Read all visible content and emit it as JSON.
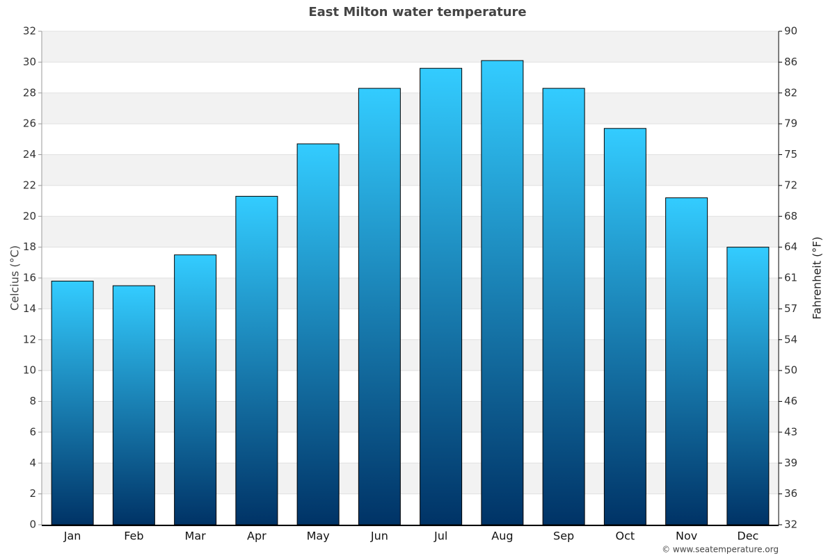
{
  "chart_data": {
    "type": "bar",
    "title": "East Milton water temperature",
    "categories": [
      "Jan",
      "Feb",
      "Mar",
      "Apr",
      "May",
      "Jun",
      "Jul",
      "Aug",
      "Sep",
      "Oct",
      "Nov",
      "Dec"
    ],
    "values": [
      15.8,
      15.5,
      17.5,
      21.3,
      24.7,
      28.3,
      29.6,
      30.1,
      28.3,
      25.7,
      21.2,
      18.0
    ],
    "color": [
      "#33ccff",
      "#003366"
    ],
    "ylabel": "Celcius (°C)",
    "y2label": "Fahrenheit (°F)",
    "ylim": [
      0,
      32
    ],
    "yticks": [
      0,
      2,
      4,
      6,
      8,
      10,
      12,
      14,
      16,
      18,
      20,
      22,
      24,
      26,
      28,
      30,
      32
    ],
    "y2lim": [
      32,
      89.6
    ],
    "y2ticks": [
      32,
      {
        "value": 35.6,
        "label": "36"
      },
      {
        "value": 39.2,
        "label": "39"
      },
      {
        "value": 42.8,
        "label": "43"
      },
      {
        "value": 46.4,
        "label": "46"
      },
      50,
      {
        "value": 53.6,
        "label": "54"
      },
      {
        "value": 57.2,
        "label": "57"
      },
      {
        "value": 60.8,
        "label": "61"
      },
      {
        "value": 64.4,
        "label": "64"
      },
      68,
      {
        "value": 71.6,
        "label": "72"
      },
      {
        "value": 75.2,
        "label": "75"
      },
      {
        "value": 78.8,
        "label": "79"
      },
      {
        "value": 82.4,
        "label": "82"
      },
      86,
      {
        "value": 89.6,
        "label": "90"
      }
    ],
    "grid": true,
    "source": "© www.seatemperature.org"
  }
}
